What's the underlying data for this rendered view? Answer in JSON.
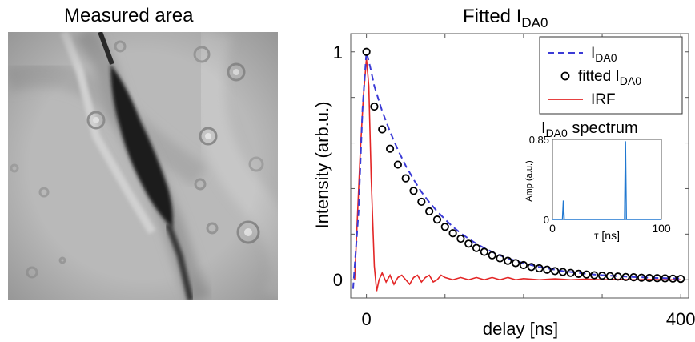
{
  "left_panel": {
    "title": "Measured area"
  },
  "chart_data": {
    "type": "line",
    "title_base": "Fitted I",
    "title_sub": "DA0",
    "xlabel": "delay [ns]",
    "ylabel": "Intensity (arb.u.)",
    "xlim": [
      -20,
      410
    ],
    "ylim": [
      -0.08,
      1.08
    ],
    "x_ticks": [
      {
        "value": 0,
        "label": "0"
      },
      {
        "value": 400,
        "label": "400"
      }
    ],
    "y_ticks": [
      {
        "value": 0,
        "label": "0"
      },
      {
        "value": 1,
        "label": "1"
      }
    ],
    "grid": false,
    "legend_position": "top-right",
    "series": [
      {
        "name_base": "I",
        "name_sub": "DA0",
        "style": "dashed",
        "color": "#3b3bd6",
        "x": [
          -17,
          -10,
          -5,
          0,
          5,
          10,
          20,
          30,
          40,
          50,
          60,
          70,
          80,
          90,
          100,
          110,
          120,
          130,
          140,
          150,
          160,
          170,
          180,
          190,
          200,
          210,
          220,
          230,
          240,
          250,
          260,
          270,
          280,
          290,
          300,
          310,
          320,
          330,
          340,
          350,
          360,
          370,
          380,
          390,
          400
        ],
        "y": [
          -0.04,
          0.3,
          0.75,
          1.0,
          0.93,
          0.85,
          0.74,
          0.65,
          0.57,
          0.5,
          0.44,
          0.385,
          0.34,
          0.3,
          0.265,
          0.232,
          0.204,
          0.18,
          0.158,
          0.139,
          0.122,
          0.107,
          0.094,
          0.083,
          0.073,
          0.064,
          0.056,
          0.05,
          0.044,
          0.038,
          0.034,
          0.03,
          0.026,
          0.023,
          0.02,
          0.018,
          0.016,
          0.014,
          0.012,
          0.011,
          0.009,
          0.008,
          0.007,
          0.006,
          0.005
        ]
      },
      {
        "name_base": "fitted I",
        "name_sub": "DA0",
        "style": "markers",
        "color": "#000000",
        "x": [
          0,
          10,
          20,
          30,
          40,
          50,
          60,
          70,
          80,
          90,
          100,
          110,
          120,
          130,
          140,
          150,
          160,
          170,
          180,
          190,
          200,
          210,
          220,
          230,
          240,
          250,
          260,
          270,
          280,
          290,
          300,
          310,
          320,
          330,
          340,
          350,
          360,
          370,
          380,
          390,
          400
        ],
        "y": [
          1.0,
          0.76,
          0.66,
          0.575,
          0.505,
          0.445,
          0.39,
          0.342,
          0.3,
          0.264,
          0.232,
          0.204,
          0.18,
          0.158,
          0.139,
          0.122,
          0.107,
          0.094,
          0.083,
          0.073,
          0.064,
          0.056,
          0.05,
          0.044,
          0.038,
          0.034,
          0.03,
          0.026,
          0.023,
          0.02,
          0.018,
          0.016,
          0.014,
          0.012,
          0.011,
          0.009,
          0.008,
          0.007,
          0.006,
          0.005,
          0.004
        ]
      },
      {
        "name_base": "IRF",
        "name_sub": "",
        "style": "solid",
        "color": "#e32626",
        "x": [
          -15,
          -8,
          -4,
          0,
          3,
          6,
          10,
          13,
          16,
          20,
          25,
          30,
          35,
          40,
          45,
          50,
          55,
          60,
          65,
          70,
          75,
          80,
          85,
          90,
          95,
          100,
          110,
          120,
          130,
          140,
          150,
          160,
          170,
          180,
          190,
          200,
          220,
          240,
          260,
          280,
          300,
          320,
          340,
          360,
          380,
          400
        ],
        "y": [
          0.0,
          0.55,
          0.8,
          0.97,
          0.85,
          0.45,
          0.06,
          -0.05,
          0.0,
          0.03,
          -0.01,
          0.02,
          -0.02,
          0.01,
          0.02,
          0.0,
          -0.02,
          0.01,
          0.02,
          -0.01,
          0.01,
          0.02,
          -0.01,
          0.0,
          0.02,
          0.01,
          0.0,
          0.01,
          0.0,
          0.01,
          0.0,
          0.01,
          0.0,
          0.01,
          0.0,
          0.005,
          0.0,
          0.004,
          0.0,
          0.003,
          0.0,
          0.002,
          0.0,
          0.001,
          0.0,
          0.0
        ]
      }
    ],
    "inset": {
      "title_base": "I",
      "title_sub": "DA0",
      "title_suffix": " spectrum",
      "xlabel": "τ [ns]",
      "ylabel": "Amp (a.u.)",
      "xlim": [
        0,
        100
      ],
      "ylim": [
        0,
        0.85
      ],
      "x_ticks": [
        {
          "value": 0,
          "label": "0"
        },
        {
          "value": 100,
          "label": "100"
        }
      ],
      "y_ticks": [
        {
          "value": 0,
          "label": "0"
        },
        {
          "value": 0.85,
          "label": "0.85"
        }
      ],
      "color": "#1f77d0",
      "peaks": [
        {
          "x": 10,
          "y": 0.2
        },
        {
          "x": 67,
          "y": 0.83
        }
      ]
    }
  }
}
